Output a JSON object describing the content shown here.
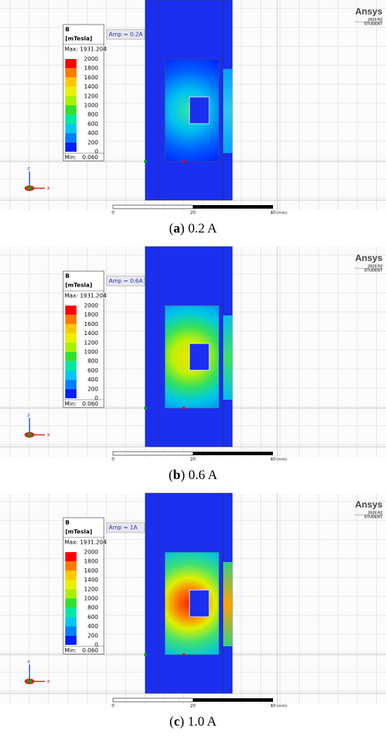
{
  "legend": {
    "title": "B",
    "unit": "[mTesla]",
    "max": "Max: 1931.204",
    "levels": [
      2000,
      1800,
      1600,
      1400,
      1200,
      1000,
      800,
      600,
      400,
      200,
      0
    ],
    "colors": [
      "#ff0000",
      "#ff7a00",
      "#ffc800",
      "#e8f000",
      "#a8f000",
      "#32e030",
      "#00e8a0",
      "#00c8f0",
      "#0080ff",
      "#0020ff"
    ],
    "min": "Min:",
    "min_value": "0.060"
  },
  "logo": {
    "name": "Ansys",
    "version": "2023 R2",
    "edition": "STUDENT"
  },
  "scale": {
    "ticks": [
      0,
      20,
      40
    ],
    "unit": "(mm)"
  },
  "axes": {
    "z": "z",
    "x": "x"
  },
  "panels": [
    {
      "amp": "Amp = 0.2A",
      "caption": {
        "open": "(",
        "letter": "a",
        "close": ")",
        "text": "0.2 A"
      }
    },
    {
      "amp": "Amp = 0.6A",
      "caption": {
        "open": "(",
        "letter": "b",
        "close": ")",
        "text": "0.6 A"
      }
    },
    {
      "amp": "Amp = 1A",
      "caption": {
        "open": "(",
        "letter": "c",
        "close": ")",
        "text": "1.0 A"
      }
    }
  ]
}
